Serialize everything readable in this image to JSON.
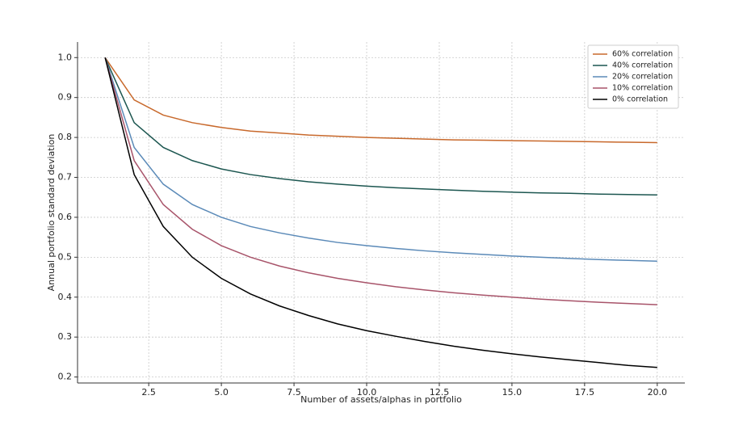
{
  "chart_data": {
    "type": "line",
    "xlabel": "Number of assets/alphas in portfolio",
    "ylabel": "Annual portfolio standard deviation",
    "x": [
      1,
      2,
      3,
      4,
      5,
      6,
      7,
      8,
      9,
      10,
      11,
      12,
      13,
      14,
      15,
      16,
      17,
      18,
      19,
      20
    ],
    "series": [
      {
        "name": "60% correlation",
        "color": "#c8692c",
        "values": [
          1,
          0.894,
          0.856,
          0.837,
          0.825,
          0.816,
          0.811,
          0.806,
          0.803,
          0.8,
          0.798,
          0.796,
          0.794,
          0.793,
          0.792,
          0.791,
          0.79,
          0.789,
          0.788,
          0.787
        ]
      },
      {
        "name": "40% correlation",
        "color": "#1c5650",
        "values": [
          1,
          0.837,
          0.775,
          0.742,
          0.721,
          0.707,
          0.697,
          0.689,
          0.683,
          0.678,
          0.674,
          0.671,
          0.668,
          0.665,
          0.663,
          0.661,
          0.66,
          0.658,
          0.657,
          0.656
        ]
      },
      {
        "name": "20% correlation",
        "color": "#5b8ab8",
        "values": [
          1,
          0.775,
          0.683,
          0.632,
          0.6,
          0.577,
          0.561,
          0.548,
          0.537,
          0.529,
          0.522,
          0.516,
          0.511,
          0.507,
          0.503,
          0.5,
          0.497,
          0.494,
          0.492,
          0.49
        ]
      },
      {
        "name": "10% correlation",
        "color": "#a8546a",
        "values": [
          1,
          0.742,
          0.632,
          0.57,
          0.529,
          0.5,
          0.478,
          0.461,
          0.447,
          0.436,
          0.426,
          0.418,
          0.411,
          0.405,
          0.4,
          0.395,
          0.391,
          0.387,
          0.384,
          0.381
        ]
      },
      {
        "name": "0% correlation",
        "color": "#000000",
        "values": [
          1,
          0.707,
          0.577,
          0.5,
          0.447,
          0.408,
          0.378,
          0.354,
          0.333,
          0.316,
          0.302,
          0.289,
          0.277,
          0.267,
          0.258,
          0.25,
          0.243,
          0.236,
          0.229,
          0.224
        ]
      }
    ],
    "xlim": [
      0.05,
      20.95
    ],
    "ylim": [
      0.185,
      1.039
    ],
    "xticks": [
      2.5,
      5.0,
      7.5,
      10.0,
      12.5,
      15.0,
      17.5,
      20.0
    ],
    "yticks": [
      0.2,
      0.3,
      0.4,
      0.5,
      0.6,
      0.7,
      0.8,
      0.9,
      1.0
    ],
    "grid": true,
    "legend": "upper right"
  }
}
